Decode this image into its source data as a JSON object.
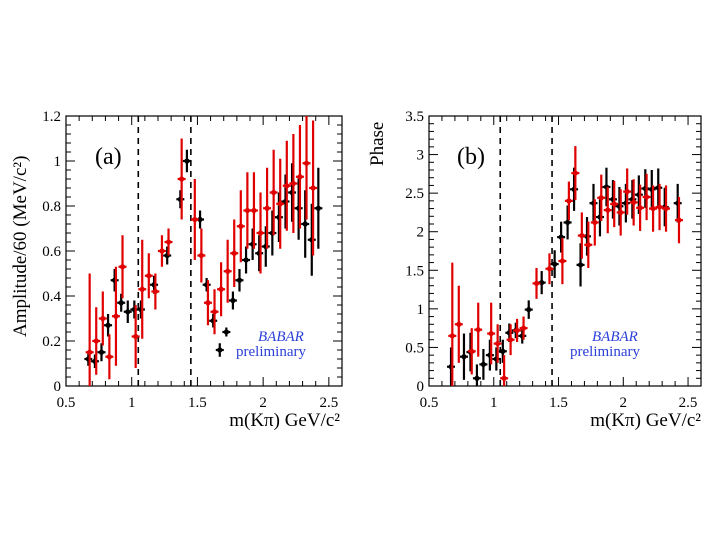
{
  "chart_data": [
    {
      "type": "scatter",
      "panel_label": "(a)",
      "xlabel": "m(Kπ) GeV/c²",
      "ylabel": "Amplitude/60 (MeV/c²)",
      "xlim": [
        0.5,
        2.6
      ],
      "ylim": [
        0,
        1.2
      ],
      "x_ticks": [
        "0.5",
        "1",
        "1.5",
        "2",
        "2.5"
      ],
      "y_ticks": [
        "0",
        "0.2",
        "0.4",
        "0.6",
        "0.8",
        "1",
        "1.2"
      ],
      "dashed_lines_x": [
        1.05,
        1.45
      ],
      "watermark": [
        "BABAR",
        "preliminary"
      ],
      "series": [
        {
          "name": "black",
          "color": "#000000",
          "points": [
            {
              "x": 0.67,
              "y": 0.12,
              "err": 0.03
            },
            {
              "x": 0.72,
              "y": 0.11,
              "err": 0.03
            },
            {
              "x": 0.77,
              "y": 0.15,
              "err": 0.04
            },
            {
              "x": 0.82,
              "y": 0.27,
              "err": 0.05
            },
            {
              "x": 0.87,
              "y": 0.47,
              "err": 0.05
            },
            {
              "x": 0.92,
              "y": 0.37,
              "err": 0.04
            },
            {
              "x": 0.97,
              "y": 0.33,
              "err": 0.05
            },
            {
              "x": 1.02,
              "y": 0.34,
              "err": 0.04
            },
            {
              "x": 1.07,
              "y": 0.34,
              "err": 0.04
            },
            {
              "x": 1.17,
              "y": 0.45,
              "err": 0.04
            },
            {
              "x": 1.27,
              "y": 0.58,
              "err": 0.04
            },
            {
              "x": 1.37,
              "y": 0.83,
              "err": 0.04
            },
            {
              "x": 1.42,
              "y": 1.0,
              "err": 0.05
            },
            {
              "x": 1.52,
              "y": 0.74,
              "err": 0.04
            },
            {
              "x": 1.57,
              "y": 0.45,
              "err": 0.03
            },
            {
              "x": 1.62,
              "y": 0.29,
              "err": 0.03
            },
            {
              "x": 1.67,
              "y": 0.16,
              "err": 0.03
            },
            {
              "x": 1.72,
              "y": 0.24,
              "err": 0.02
            },
            {
              "x": 1.77,
              "y": 0.38,
              "err": 0.04
            },
            {
              "x": 1.82,
              "y": 0.47,
              "err": 0.05
            },
            {
              "x": 1.87,
              "y": 0.56,
              "err": 0.06
            },
            {
              "x": 1.92,
              "y": 0.63,
              "err": 0.07
            },
            {
              "x": 1.97,
              "y": 0.59,
              "err": 0.08
            },
            {
              "x": 2.02,
              "y": 0.62,
              "err": 0.09
            },
            {
              "x": 2.07,
              "y": 0.68,
              "err": 0.1
            },
            {
              "x": 2.12,
              "y": 0.75,
              "err": 0.11
            },
            {
              "x": 2.17,
              "y": 0.82,
              "err": 0.12
            },
            {
              "x": 2.22,
              "y": 0.86,
              "err": 0.13
            },
            {
              "x": 2.27,
              "y": 0.79,
              "err": 0.14
            },
            {
              "x": 2.32,
              "y": 0.72,
              "err": 0.15
            },
            {
              "x": 2.37,
              "y": 0.65,
              "err": 0.16
            },
            {
              "x": 2.42,
              "y": 0.79,
              "err": 0.18
            }
          ]
        },
        {
          "name": "red",
          "color": "#e00000",
          "points": [
            {
              "x": 0.68,
              "y": 0.15,
              "err": 0.35
            },
            {
              "x": 0.73,
              "y": 0.2,
              "err": 0.15
            },
            {
              "x": 0.78,
              "y": 0.3,
              "err": 0.12
            },
            {
              "x": 0.83,
              "y": 0.13,
              "err": 0.1
            },
            {
              "x": 0.88,
              "y": 0.31,
              "err": 0.22
            },
            {
              "x": 0.93,
              "y": 0.53,
              "err": 0.14
            },
            {
              "x": 1.03,
              "y": 0.22,
              "err": 0.14
            },
            {
              "x": 1.08,
              "y": 0.43,
              "err": 0.22
            },
            {
              "x": 1.13,
              "y": 0.49,
              "err": 0.1
            },
            {
              "x": 1.18,
              "y": 0.42,
              "err": 0.08
            },
            {
              "x": 1.23,
              "y": 0.6,
              "err": 0.07
            },
            {
              "x": 1.28,
              "y": 0.64,
              "err": 0.06
            },
            {
              "x": 1.38,
              "y": 0.92,
              "err": 0.18
            },
            {
              "x": 1.48,
              "y": 0.74,
              "err": 0.18
            },
            {
              "x": 1.53,
              "y": 0.58,
              "err": 0.12
            },
            {
              "x": 1.58,
              "y": 0.37,
              "err": 0.1
            },
            {
              "x": 1.63,
              "y": 0.33,
              "err": 0.1
            },
            {
              "x": 1.68,
              "y": 0.43,
              "err": 0.12
            },
            {
              "x": 1.73,
              "y": 0.51,
              "err": 0.14
            },
            {
              "x": 1.78,
              "y": 0.59,
              "err": 0.15
            },
            {
              "x": 1.83,
              "y": 0.71,
              "err": 0.16
            },
            {
              "x": 1.88,
              "y": 0.78,
              "err": 0.17
            },
            {
              "x": 1.93,
              "y": 0.78,
              "err": 0.17
            },
            {
              "x": 1.98,
              "y": 0.68,
              "err": 0.18
            },
            {
              "x": 2.03,
              "y": 0.79,
              "err": 0.18
            },
            {
              "x": 2.08,
              "y": 0.86,
              "err": 0.19
            },
            {
              "x": 2.13,
              "y": 0.81,
              "err": 0.2
            },
            {
              "x": 2.18,
              "y": 0.89,
              "err": 0.2
            },
            {
              "x": 2.23,
              "y": 0.9,
              "err": 0.22
            },
            {
              "x": 2.28,
              "y": 0.93,
              "err": 0.23
            },
            {
              "x": 2.33,
              "y": 0.99,
              "err": 0.25
            },
            {
              "x": 2.38,
              "y": 0.88,
              "err": 0.3
            }
          ]
        }
      ]
    },
    {
      "type": "scatter",
      "panel_label": "(b)",
      "xlabel": "m(Kπ) GeV/c²",
      "ylabel": "Phase",
      "xlim": [
        0.5,
        2.6
      ],
      "ylim": [
        0,
        3.5
      ],
      "x_ticks": [
        "0.5",
        "1",
        "1.5",
        "2",
        "2.5"
      ],
      "y_ticks": [
        "0",
        "0.5",
        "1",
        "1.5",
        "2",
        "2.5",
        "3",
        "3.5"
      ],
      "dashed_lines_x": [
        1.05,
        1.45
      ],
      "watermark": [
        "BABAR",
        "preliminary"
      ],
      "series": [
        {
          "name": "black",
          "color": "#000000",
          "points": [
            {
              "x": 0.67,
              "y": 0.25,
              "err": 0.25
            },
            {
              "x": 0.77,
              "y": 0.38,
              "err": 0.3
            },
            {
              "x": 0.82,
              "y": 0.44,
              "err": 0.25
            },
            {
              "x": 0.87,
              "y": 0.1,
              "err": 0.18
            },
            {
              "x": 0.92,
              "y": 0.28,
              "err": 0.2
            },
            {
              "x": 0.97,
              "y": 0.4,
              "err": 0.2
            },
            {
              "x": 1.02,
              "y": 0.35,
              "err": 0.15
            },
            {
              "x": 1.07,
              "y": 0.45,
              "err": 0.15
            },
            {
              "x": 1.12,
              "y": 0.69,
              "err": 0.12
            },
            {
              "x": 1.17,
              "y": 0.72,
              "err": 0.1
            },
            {
              "x": 1.22,
              "y": 0.65,
              "err": 0.1
            },
            {
              "x": 1.27,
              "y": 0.99,
              "err": 0.12
            },
            {
              "x": 1.37,
              "y": 1.34,
              "err": 0.15
            },
            {
              "x": 1.47,
              "y": 1.58,
              "err": 0.18
            },
            {
              "x": 1.52,
              "y": 1.93,
              "err": 0.2
            },
            {
              "x": 1.57,
              "y": 2.12,
              "err": 0.22
            },
            {
              "x": 1.62,
              "y": 2.55,
              "err": 0.28
            },
            {
              "x": 1.67,
              "y": 1.57,
              "err": 0.28
            },
            {
              "x": 1.72,
              "y": 1.94,
              "err": 0.25
            },
            {
              "x": 1.77,
              "y": 2.37,
              "err": 0.25
            },
            {
              "x": 1.82,
              "y": 2.19,
              "err": 0.25
            },
            {
              "x": 1.87,
              "y": 2.58,
              "err": 0.25
            },
            {
              "x": 1.92,
              "y": 2.42,
              "err": 0.25
            },
            {
              "x": 1.97,
              "y": 2.33,
              "err": 0.25
            },
            {
              "x": 2.02,
              "y": 2.37,
              "err": 0.25
            },
            {
              "x": 2.07,
              "y": 2.42,
              "err": 0.25
            },
            {
              "x": 2.12,
              "y": 2.48,
              "err": 0.25
            },
            {
              "x": 2.17,
              "y": 2.56,
              "err": 0.25
            },
            {
              "x": 2.22,
              "y": 2.55,
              "err": 0.25
            },
            {
              "x": 2.27,
              "y": 2.57,
              "err": 0.25
            },
            {
              "x": 2.32,
              "y": 2.32,
              "err": 0.25
            },
            {
              "x": 2.42,
              "y": 2.37,
              "err": 0.25
            }
          ]
        },
        {
          "name": "red",
          "color": "#e00000",
          "points": [
            {
              "x": 0.68,
              "y": 0.65,
              "err": 0.95
            },
            {
              "x": 0.73,
              "y": 0.8,
              "err": 0.5
            },
            {
              "x": 0.83,
              "y": 0.45,
              "err": 0.3
            },
            {
              "x": 0.88,
              "y": 0.73,
              "err": 0.35
            },
            {
              "x": 0.98,
              "y": 0.68,
              "err": 0.4
            },
            {
              "x": 1.03,
              "y": 0.55,
              "err": 0.25
            },
            {
              "x": 1.08,
              "y": 0.1,
              "err": 0.3
            },
            {
              "x": 1.13,
              "y": 0.6,
              "err": 0.2
            },
            {
              "x": 1.18,
              "y": 0.72,
              "err": 0.15
            },
            {
              "x": 1.23,
              "y": 0.75,
              "err": 0.15
            },
            {
              "x": 1.33,
              "y": 1.33,
              "err": 0.2
            },
            {
              "x": 1.43,
              "y": 1.52,
              "err": 0.2
            },
            {
              "x": 1.53,
              "y": 1.62,
              "err": 0.3
            },
            {
              "x": 1.58,
              "y": 2.4,
              "err": 0.25
            },
            {
              "x": 1.63,
              "y": 2.76,
              "err": 0.35
            },
            {
              "x": 1.68,
              "y": 1.95,
              "err": 0.3
            },
            {
              "x": 1.73,
              "y": 1.83,
              "err": 0.3
            },
            {
              "x": 1.78,
              "y": 2.12,
              "err": 0.3
            },
            {
              "x": 1.83,
              "y": 2.44,
              "err": 0.3
            },
            {
              "x": 1.88,
              "y": 2.28,
              "err": 0.3
            },
            {
              "x": 1.93,
              "y": 2.36,
              "err": 0.3
            },
            {
              "x": 1.98,
              "y": 2.25,
              "err": 0.3
            },
            {
              "x": 2.03,
              "y": 2.52,
              "err": 0.3
            },
            {
              "x": 2.08,
              "y": 2.38,
              "err": 0.3
            },
            {
              "x": 2.13,
              "y": 2.31,
              "err": 0.3
            },
            {
              "x": 2.18,
              "y": 2.45,
              "err": 0.3
            },
            {
              "x": 2.23,
              "y": 2.3,
              "err": 0.3
            },
            {
              "x": 2.28,
              "y": 2.32,
              "err": 0.3
            },
            {
              "x": 2.33,
              "y": 2.3,
              "err": 0.3
            },
            {
              "x": 2.43,
              "y": 2.15,
              "err": 0.3
            }
          ]
        }
      ]
    }
  ]
}
